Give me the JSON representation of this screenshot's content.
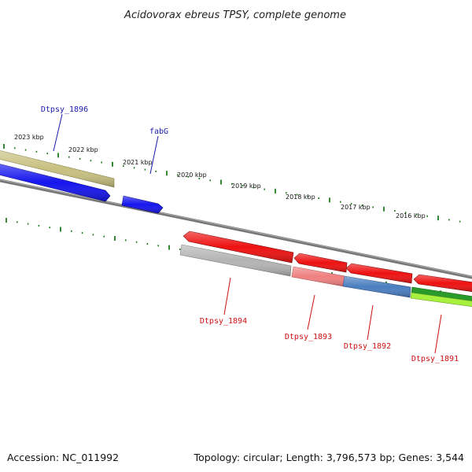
{
  "title": "Acidovorax ebreus TPSY, complete genome",
  "footer": {
    "accession": "Accession: NC_011992",
    "summary": "Topology: circular; Length: 3,796,573 bp; Genes: 3,544"
  },
  "colors": {
    "forward_label": "#1a1aaa",
    "reverse_label": "#cc1111",
    "tick": "#1d7a1d",
    "backbone": "#777777"
  },
  "kbp_labels": [
    "2023 kbp",
    "2022 kbp",
    "2021 kbp",
    "2020 kbp",
    "2019 kbp",
    "2018 kbp",
    "2017 kbp",
    "2016 kbp"
  ],
  "forward_labels": [
    "Dtpsy_1896",
    "fabG"
  ],
  "reverse_labels": [
    "Dtpsy_1894",
    "Dtpsy_1893",
    "Dtpsy_1892",
    "Dtpsy_1891"
  ],
  "genes": [
    {
      "name": "Dtpsy_1896",
      "strand": "+",
      "color": "#c8c080"
    },
    {
      "name": "",
      "strand": "+",
      "color": "#1515ee"
    },
    {
      "name": "fabG",
      "strand": "+",
      "color": "#1515ee"
    },
    {
      "name": "",
      "strand": "-",
      "color": "#ee1111"
    },
    {
      "name": "Dtpsy_1894",
      "strand": "-",
      "color": "#b4b4b4"
    },
    {
      "name": "",
      "strand": "-",
      "color": "#ee1111"
    },
    {
      "name": "Dtpsy_1893",
      "strand": "-",
      "color": "#f08080"
    },
    {
      "name": "",
      "strand": "-",
      "color": "#ee1111"
    },
    {
      "name": "Dtpsy_1892",
      "strand": "-",
      "color": "#4a7ec0"
    },
    {
      "name": "",
      "strand": "-",
      "color": "#ee1111"
    },
    {
      "name": "Dtpsy_1891",
      "strand": "-",
      "color": "#2a9a2a"
    },
    {
      "name": "",
      "strand": "-",
      "color": "#a8f040"
    }
  ]
}
